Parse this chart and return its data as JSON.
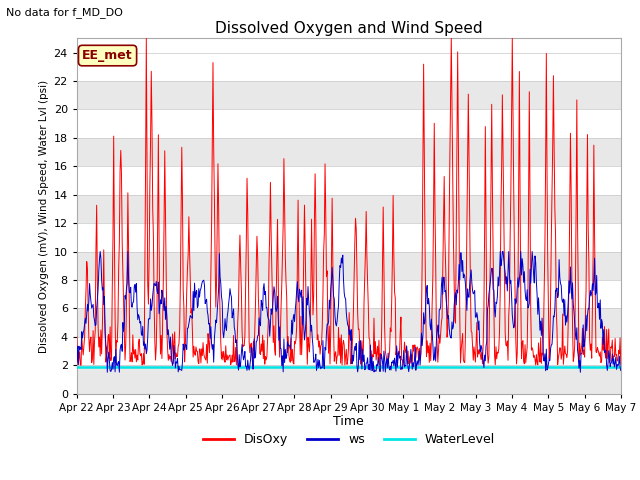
{
  "title": "Dissolved Oxygen and Wind Speed",
  "subtitle": "No data for f_MD_DO",
  "xlabel": "Time",
  "ylabel": "Dissolved Oxygen (mV), Wind Speed, Water Lvl (psi)",
  "ylim": [
    0,
    25
  ],
  "yticks": [
    0,
    2,
    4,
    6,
    8,
    10,
    12,
    14,
    16,
    18,
    20,
    22,
    24
  ],
  "x_labels": [
    "Apr 22",
    "Apr 23",
    "Apr 24",
    "Apr 25",
    "Apr 26",
    "Apr 27",
    "Apr 28",
    "Apr 29",
    "Apr 30",
    "May 1",
    "May 2",
    "May 3",
    "May 4",
    "May 5",
    "May 6",
    "May 7"
  ],
  "water_level": 1.9,
  "legend_labels": [
    "DisOxy",
    "ws",
    "WaterLevel"
  ],
  "legend_colors": [
    "#ff0000",
    "#0000cc",
    "#00e5e5"
  ],
  "station_label": "EE_met",
  "disoxy_color": "#ff0000",
  "ws_color": "#0000cc",
  "water_level_color": "#00e5e5",
  "background_color": "#ffffff",
  "band_color": "#e8e8e8",
  "figwidth": 6.4,
  "figheight": 4.8,
  "dpi": 100
}
